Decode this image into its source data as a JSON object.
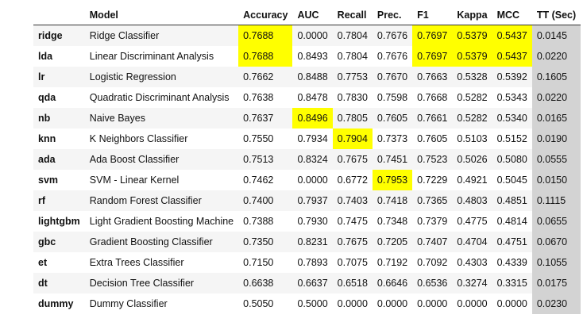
{
  "table": {
    "headers": [
      "",
      "Model",
      "Accuracy",
      "AUC",
      "Recall",
      "Prec.",
      "F1",
      "Kappa",
      "MCC",
      "TT (Sec)"
    ],
    "highlight_color": "#ffff00",
    "tt_column_color": "#d3d3d3",
    "rows": [
      {
        "id": "ridge",
        "cells": [
          "ridge",
          "Ridge Classifier",
          "0.7688",
          "0.0000",
          "0.7804",
          "0.7676",
          "0.7697",
          "0.5379",
          "0.5437",
          "0.0145"
        ],
        "hl": [
          2,
          6,
          7,
          8
        ]
      },
      {
        "id": "lda",
        "cells": [
          "lda",
          "Linear Discriminant Analysis",
          "0.7688",
          "0.8493",
          "0.7804",
          "0.7676",
          "0.7697",
          "0.5379",
          "0.5437",
          "0.0220"
        ],
        "hl": [
          2,
          6,
          7,
          8
        ]
      },
      {
        "id": "lr",
        "cells": [
          "lr",
          "Logistic Regression",
          "0.7662",
          "0.8488",
          "0.7753",
          "0.7670",
          "0.7663",
          "0.5328",
          "0.5392",
          "0.1605"
        ],
        "hl": []
      },
      {
        "id": "qda",
        "cells": [
          "qda",
          "Quadratic Discriminant Analysis",
          "0.7638",
          "0.8478",
          "0.7830",
          "0.7598",
          "0.7668",
          "0.5282",
          "0.5343",
          "0.0220"
        ],
        "hl": []
      },
      {
        "id": "nb",
        "cells": [
          "nb",
          "Naive Bayes",
          "0.7637",
          "0.8496",
          "0.7805",
          "0.7605",
          "0.7661",
          "0.5282",
          "0.5340",
          "0.0165"
        ],
        "hl": [
          3
        ]
      },
      {
        "id": "knn",
        "cells": [
          "knn",
          "K Neighbors Classifier",
          "0.7550",
          "0.7934",
          "0.7904",
          "0.7373",
          "0.7605",
          "0.5103",
          "0.5152",
          "0.0190"
        ],
        "hl": [
          4
        ]
      },
      {
        "id": "ada",
        "cells": [
          "ada",
          "Ada Boost Classifier",
          "0.7513",
          "0.8324",
          "0.7675",
          "0.7451",
          "0.7523",
          "0.5026",
          "0.5080",
          "0.0555"
        ],
        "hl": []
      },
      {
        "id": "svm",
        "cells": [
          "svm",
          "SVM - Linear Kernel",
          "0.7462",
          "0.0000",
          "0.6772",
          "0.7953",
          "0.7229",
          "0.4921",
          "0.5045",
          "0.0150"
        ],
        "hl": [
          5
        ]
      },
      {
        "id": "rf",
        "cells": [
          "rf",
          "Random Forest Classifier",
          "0.7400",
          "0.7937",
          "0.7403",
          "0.7418",
          "0.7365",
          "0.4803",
          "0.4851",
          "0.1115"
        ],
        "hl": []
      },
      {
        "id": "lightgbm",
        "cells": [
          "lightgbm",
          "Light Gradient Boosting Machine",
          "0.7388",
          "0.7930",
          "0.7475",
          "0.7348",
          "0.7379",
          "0.4775",
          "0.4814",
          "0.0655"
        ],
        "hl": []
      },
      {
        "id": "gbc",
        "cells": [
          "gbc",
          "Gradient Boosting Classifier",
          "0.7350",
          "0.8231",
          "0.7675",
          "0.7205",
          "0.7407",
          "0.4704",
          "0.4751",
          "0.0670"
        ],
        "hl": []
      },
      {
        "id": "et",
        "cells": [
          "et",
          "Extra Trees Classifier",
          "0.7150",
          "0.7893",
          "0.7075",
          "0.7192",
          "0.7092",
          "0.4303",
          "0.4339",
          "0.1055"
        ],
        "hl": []
      },
      {
        "id": "dt",
        "cells": [
          "dt",
          "Decision Tree Classifier",
          "0.6638",
          "0.6637",
          "0.6518",
          "0.6646",
          "0.6536",
          "0.3274",
          "0.3315",
          "0.0175"
        ],
        "hl": []
      },
      {
        "id": "dummy",
        "cells": [
          "dummy",
          "Dummy Classifier",
          "0.5050",
          "0.5000",
          "0.0000",
          "0.0000",
          "0.0000",
          "0.0000",
          "0.0000",
          "0.0230"
        ],
        "hl": []
      }
    ]
  }
}
